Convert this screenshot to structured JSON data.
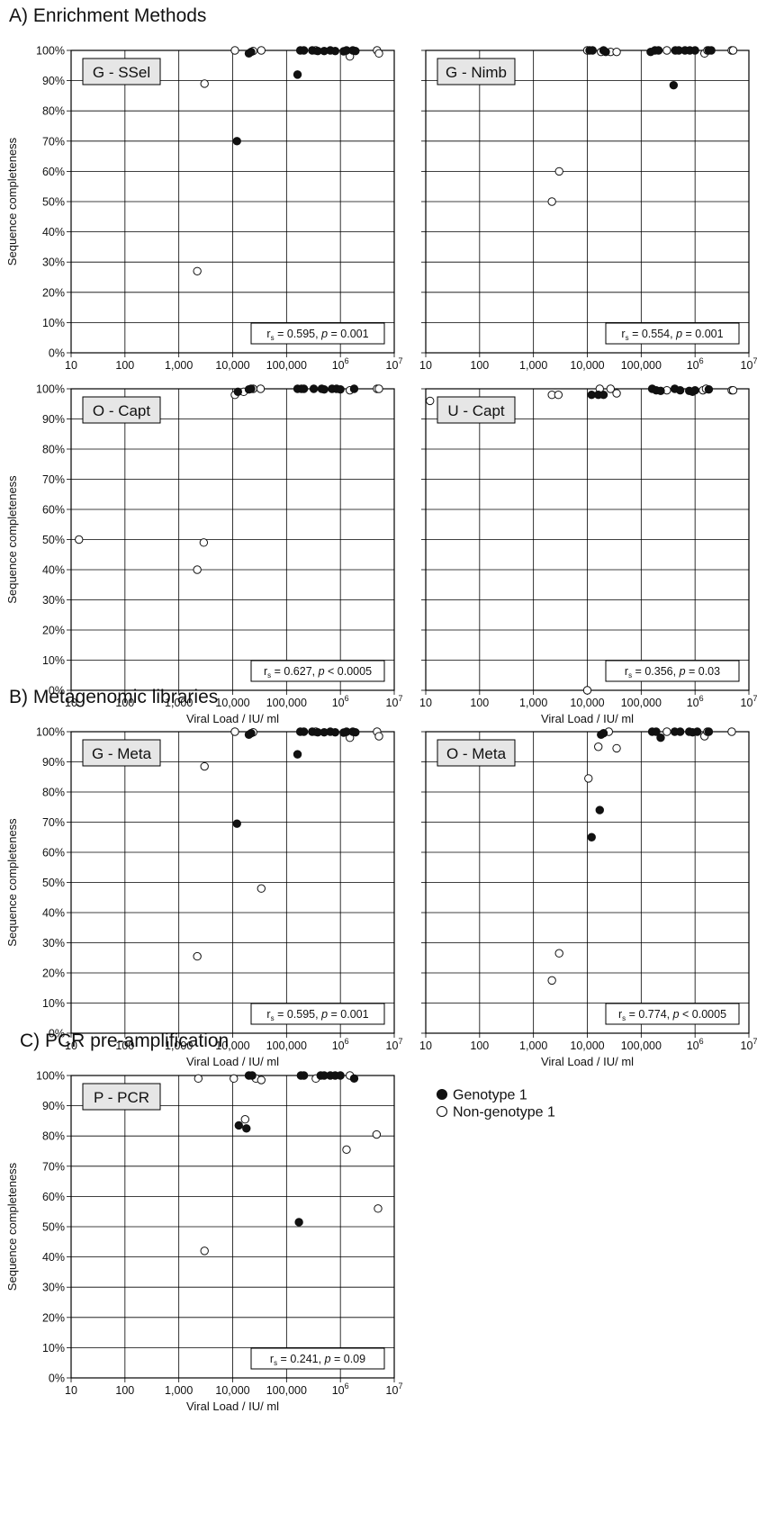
{
  "sections": [
    {
      "id": "A",
      "title": "A) Enrichment Methods"
    },
    {
      "id": "B",
      "title": "B) Metagenomic libraries"
    },
    {
      "id": "C",
      "title": "C) PCR pre-amplification"
    }
  ],
  "axes": {
    "xlabel": "Viral Load / IU/ ml",
    "ylabel": "Sequence completeness",
    "x_scale": "log",
    "xlim": [
      10,
      10000000
    ],
    "ylim": [
      0,
      100
    ],
    "x_ticks": [
      {
        "value": 10,
        "label": "10"
      },
      {
        "value": 100,
        "label": "100"
      },
      {
        "value": 1000,
        "label": "1,000"
      },
      {
        "value": 10000,
        "label": "10,000"
      },
      {
        "value": 100000,
        "label": "100,000"
      },
      {
        "value": 1000000,
        "label": "10",
        "sup": "6"
      },
      {
        "value": 10000000,
        "label": "10",
        "sup": "7"
      }
    ],
    "y_ticks": [
      {
        "value": 0,
        "label": "0%"
      },
      {
        "value": 10,
        "label": "10%"
      },
      {
        "value": 20,
        "label": "20%"
      },
      {
        "value": 30,
        "label": "30%"
      },
      {
        "value": 40,
        "label": "40%"
      },
      {
        "value": 50,
        "label": "50%"
      },
      {
        "value": 60,
        "label": "60%"
      },
      {
        "value": 70,
        "label": "70%"
      },
      {
        "value": 80,
        "label": "80%"
      },
      {
        "value": 90,
        "label": "90%"
      },
      {
        "value": 100,
        "label": "100%"
      }
    ],
    "grid": true
  },
  "legend": {
    "placement": "right of P - PCR panel",
    "entries": [
      {
        "label": "Genotype 1",
        "fill": "#111111"
      },
      {
        "label": "Non-genotype 1",
        "fill": "#ffffff"
      }
    ]
  },
  "colors": {
    "genotype1": "#111111",
    "nongenotype1": "#ffffff",
    "grid": "#000000",
    "label_box": "#e6e6e6"
  },
  "chart_data": [
    {
      "type": "scatter",
      "section": "A",
      "panel_label": "G - SSel",
      "stat": {
        "r": "r",
        "sub": "s",
        "mid": " = 0.595, ",
        "p": "p",
        "rest": " = 0.001"
      },
      "series": [
        {
          "name": "Genotype 1",
          "x": [
            12000,
            20000,
            22000,
            160000,
            180000,
            210000,
            300000,
            380000,
            500000,
            650000,
            800000,
            1150000,
            1300000,
            1700000,
            1900000
          ],
          "y": [
            70,
            99,
            99.5,
            92,
            100,
            100,
            100,
            99.8,
            99.8,
            100,
            99.8,
            99.7,
            100,
            100,
            99.8
          ]
        },
        {
          "name": "Non-genotype 1",
          "x": [
            2200,
            3000,
            11000,
            24000,
            34000,
            350000,
            1500000,
            4800000,
            5200000
          ],
          "y": [
            27,
            89,
            100,
            99.8,
            100,
            100,
            98,
            100,
            99
          ]
        }
      ]
    },
    {
      "type": "scatter",
      "section": "A",
      "panel_label": "G - Nimb",
      "stat": {
        "r": "r",
        "sub": "s",
        "mid": " = 0.554, ",
        "p": "p",
        "rest": " = 0.001"
      },
      "series": [
        {
          "name": "Genotype 1",
          "x": [
            11000,
            12500,
            20000,
            22000,
            150000,
            180000,
            210000,
            400000,
            430000,
            500000,
            650000,
            800000,
            1000000,
            1800000,
            2000000
          ],
          "y": [
            100,
            100,
            100,
            99.5,
            99.5,
            100,
            100,
            88.5,
            100,
            100,
            100,
            100,
            100,
            100,
            100
          ]
        },
        {
          "name": "Non-genotype 1",
          "x": [
            2200,
            3000,
            10000,
            18000,
            27000,
            35000,
            300000,
            1500000,
            1700000,
            4800000,
            5100000
          ],
          "y": [
            50,
            60,
            100,
            99.5,
            99.5,
            99.5,
            100,
            99,
            100,
            100,
            100
          ]
        }
      ]
    },
    {
      "type": "scatter",
      "section": "A",
      "panel_label": "O - Capt",
      "stat": {
        "r": "r",
        "sub": "s",
        "mid": " = 0.627, ",
        "p": "p",
        "rest": " < 0.0005"
      },
      "series": [
        {
          "name": "Genotype 1",
          "x": [
            12500,
            20000,
            22000,
            160000,
            190000,
            210000,
            320000,
            450000,
            500000,
            700000,
            850000,
            1000000,
            1800000
          ],
          "y": [
            99,
            99.8,
            100,
            100,
            100,
            100,
            100,
            100,
            99.8,
            100,
            100,
            99.8,
            100
          ]
        },
        {
          "name": "Non-genotype 1",
          "x": [
            14,
            2200,
            2900,
            11000,
            16000,
            24000,
            33000,
            1500000,
            4800000,
            5200000
          ],
          "y": [
            50,
            40,
            49,
            98,
            99,
            100,
            100,
            99.5,
            100,
            100
          ]
        }
      ]
    },
    {
      "type": "scatter",
      "section": "A",
      "panel_label": "U - Capt",
      "stat": {
        "r": "r",
        "sub": "s",
        "mid": " = 0.356, ",
        "p": "p",
        "rest": " = 0.03"
      },
      "series": [
        {
          "name": "Genotype 1",
          "x": [
            12000,
            16000,
            20000,
            160000,
            190000,
            230000,
            420000,
            530000,
            780000,
            900000,
            1000000,
            1800000
          ],
          "y": [
            98,
            98,
            98,
            100,
            99.5,
            99.3,
            100,
            99.5,
            99.3,
            99,
            99.5,
            99.8
          ]
        },
        {
          "name": "Non-genotype 1",
          "x": [
            12,
            2200,
            2900,
            10000,
            17000,
            27000,
            35000,
            300000,
            1400000,
            1600000,
            4800000,
            5100000
          ],
          "y": [
            96,
            98,
            98,
            0,
            100,
            100,
            98.5,
            99.5,
            99.5,
            100,
            99.5,
            99.5
          ]
        }
      ]
    },
    {
      "type": "scatter",
      "section": "B",
      "panel_label": "G - Meta",
      "stat": {
        "r": "r",
        "sub": "s",
        "mid": " = 0.595, ",
        "p": "p",
        "rest": " = 0.001"
      },
      "series": [
        {
          "name": "Genotype 1",
          "x": [
            12000,
            20000,
            22000,
            160000,
            180000,
            210000,
            300000,
            380000,
            500000,
            650000,
            800000,
            1150000,
            1300000,
            1700000,
            1900000
          ],
          "y": [
            69.5,
            99,
            99.5,
            92.5,
            100,
            100,
            100,
            99.8,
            99.8,
            100,
            99.8,
            99.7,
            100,
            100,
            99.8
          ]
        },
        {
          "name": "Non-genotype 1",
          "x": [
            2200,
            3000,
            11000,
            24000,
            34000,
            350000,
            1500000,
            4800000,
            5200000
          ],
          "y": [
            25.5,
            88.5,
            100,
            99.8,
            48,
            100,
            98,
            100,
            98.5
          ]
        }
      ]
    },
    {
      "type": "scatter",
      "section": "B",
      "panel_label": "O - Meta",
      "stat": {
        "r": "r",
        "sub": "s",
        "mid": " = 0.774, ",
        "p": "p",
        "rest": " < 0.0005"
      },
      "series": [
        {
          "name": "Genotype 1",
          "x": [
            12000,
            17000,
            18000,
            20000,
            160000,
            190000,
            230000,
            420000,
            530000,
            780000,
            900000,
            1100000,
            1800000
          ],
          "y": [
            65,
            74,
            99,
            99.5,
            100,
            100,
            98,
            100,
            100,
            100,
            99.8,
            100,
            100
          ]
        },
        {
          "name": "Non-genotype 1",
          "x": [
            2200,
            3000,
            10500,
            16000,
            25000,
            35000,
            300000,
            1500000,
            1700000,
            4800000
          ],
          "y": [
            17.5,
            26.5,
            84.5,
            95,
            100,
            94.5,
            100,
            98.5,
            100,
            100
          ]
        }
      ]
    },
    {
      "type": "scatter",
      "section": "C",
      "panel_label": "P - PCR",
      "stat": {
        "r": "r",
        "sub": "s",
        "mid": " = 0.241, ",
        "p": "p",
        "rest": " = 0.09"
      },
      "series": [
        {
          "name": "Genotype 1",
          "x": [
            13000,
            18000,
            20000,
            23000,
            170000,
            185000,
            210000,
            430000,
            500000,
            650000,
            800000,
            1000000,
            1800000
          ],
          "y": [
            83.5,
            82.5,
            100,
            100,
            51.5,
            100,
            100,
            100,
            100,
            100,
            100,
            100,
            99
          ]
        },
        {
          "name": "Non-genotype 1",
          "x": [
            2300,
            3000,
            10500,
            17000,
            27000,
            34000,
            350000,
            1300000,
            1500000,
            4700000,
            5000000
          ],
          "y": [
            99,
            42,
            99,
            85.5,
            99,
            98.5,
            99,
            75.5,
            100,
            80.5,
            56
          ]
        }
      ]
    }
  ]
}
